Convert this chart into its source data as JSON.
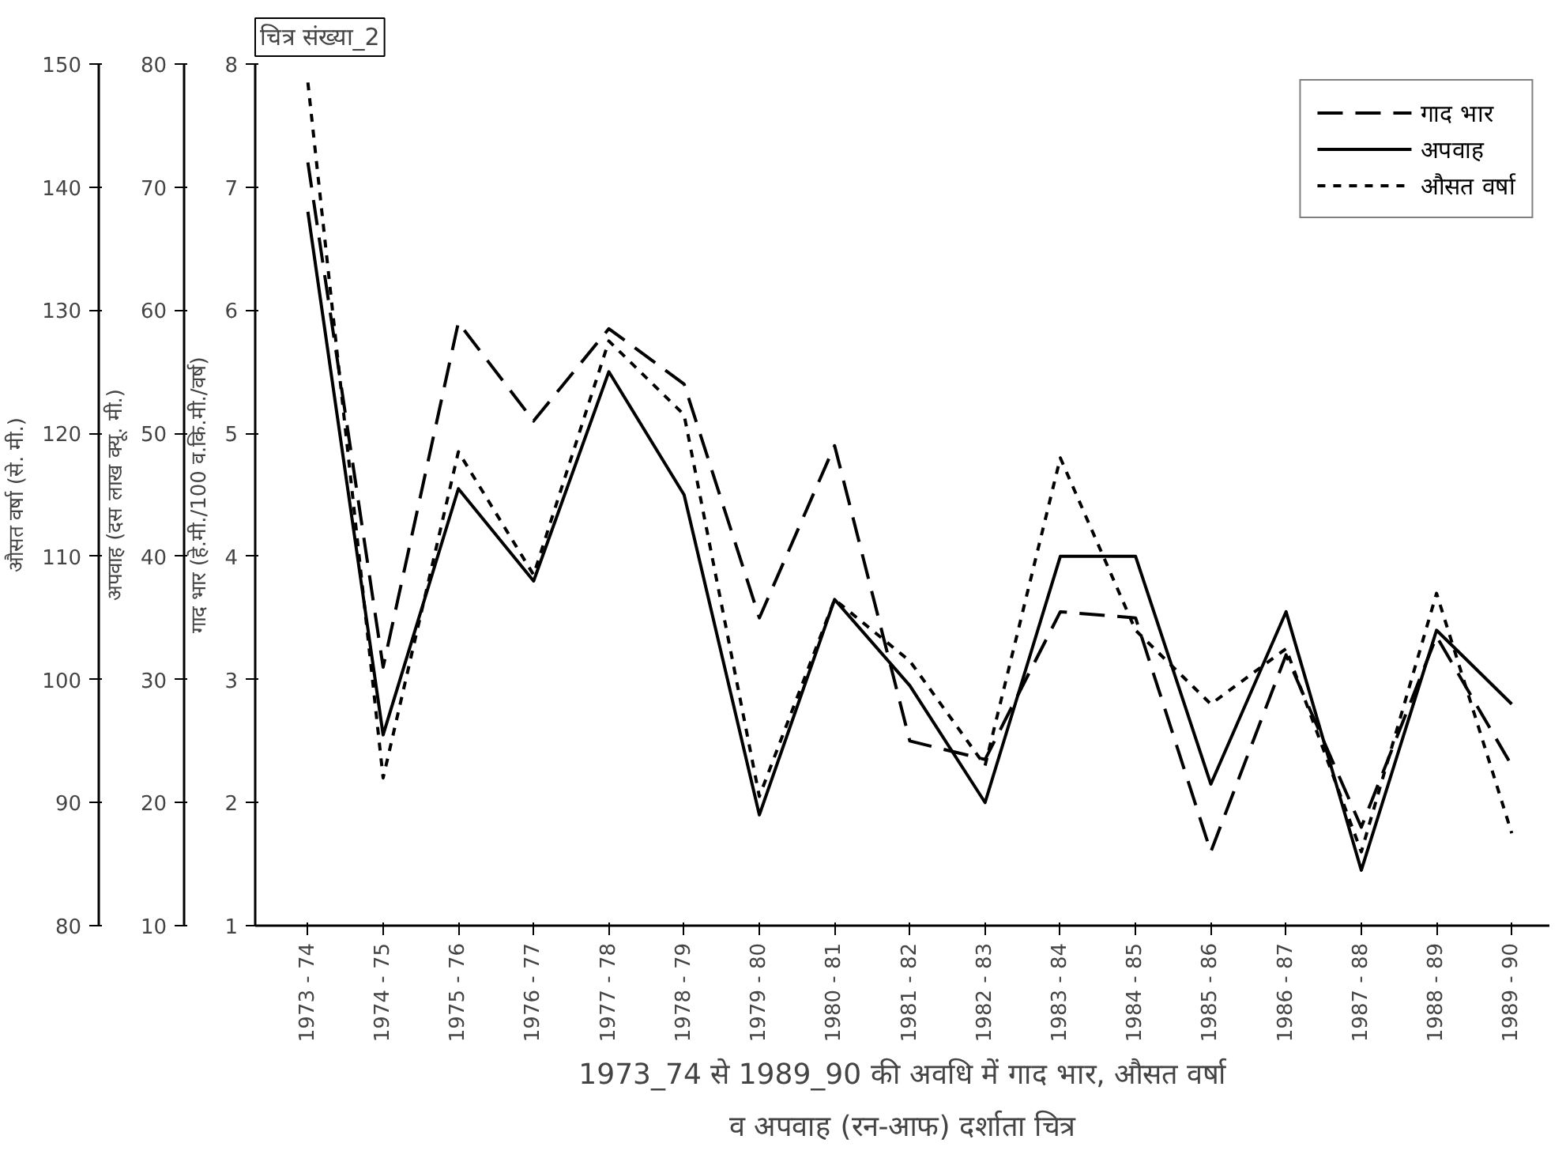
{
  "chart_data": {
    "type": "line",
    "title": "1973_74 से 1989_90 की अवधि में गाद भार, औसत वर्षा\nव अपवाह (रन-आफ) दर्शाता चित्र",
    "annotations": [
      "चित्र संख्या_2"
    ],
    "categories": [
      "1973 - 74",
      "1974 - 75",
      "1975 - 76",
      "1976 - 77",
      "1977 - 78",
      "1978 - 79",
      "1979 - 80",
      "1980 - 81",
      "1981 - 82",
      "1982 - 83",
      "1983 - 84",
      "1984 - 85",
      "1985 - 86",
      "1986 - 87",
      "1987 - 88",
      "1988 - 89",
      "1989 - 90"
    ],
    "ylabel": "गाद भार (हे.मी./100 व.कि.मी./वर्ष)",
    "y2label": "अपवाह (दस लाख क्यू. मी.)",
    "y3label": "औसत वर्षा (से. मी.)",
    "ylim": [
      1,
      8
    ],
    "yticks": [
      1,
      2,
      3,
      4,
      5,
      6,
      7,
      8
    ],
    "y2lim": [
      10,
      80
    ],
    "y2ticks": [
      10,
      20,
      30,
      40,
      50,
      60,
      70,
      80
    ],
    "y3lim": [
      80,
      150
    ],
    "y3ticks": [
      80,
      90,
      100,
      110,
      120,
      130,
      140,
      150
    ],
    "grid": false,
    "legend": "top right",
    "marker": "none",
    "series": [
      {
        "name": "गाद भार",
        "color": "#000000",
        "line_style": "dashed",
        "values": [
          7.2,
          3.1,
          5.9,
          5.1,
          5.85,
          5.4,
          3.5,
          4.9,
          2.5,
          2.35,
          3.55,
          3.5,
          1.6,
          3.2,
          1.8,
          3.35,
          2.3
        ]
      },
      {
        "name": "अपवाह",
        "color": "#000000",
        "line_style": "solid",
        "axis": "y2",
        "values": [
          68,
          25.5,
          45.5,
          38,
          55,
          45,
          19,
          36.5,
          29.5,
          20,
          40,
          40,
          21.5,
          35.5,
          14.5,
          34,
          28
        ]
      },
      {
        "name": "औसत वर्षा",
        "color": "#000000",
        "line_style": "dotted",
        "axis": "y3",
        "values": [
          148.5,
          92,
          118.5,
          108.5,
          127.5,
          121.5,
          90.5,
          106.5,
          101.5,
          93,
          118,
          104,
          98,
          102.5,
          86,
          107,
          87.5
        ]
      }
    ]
  }
}
